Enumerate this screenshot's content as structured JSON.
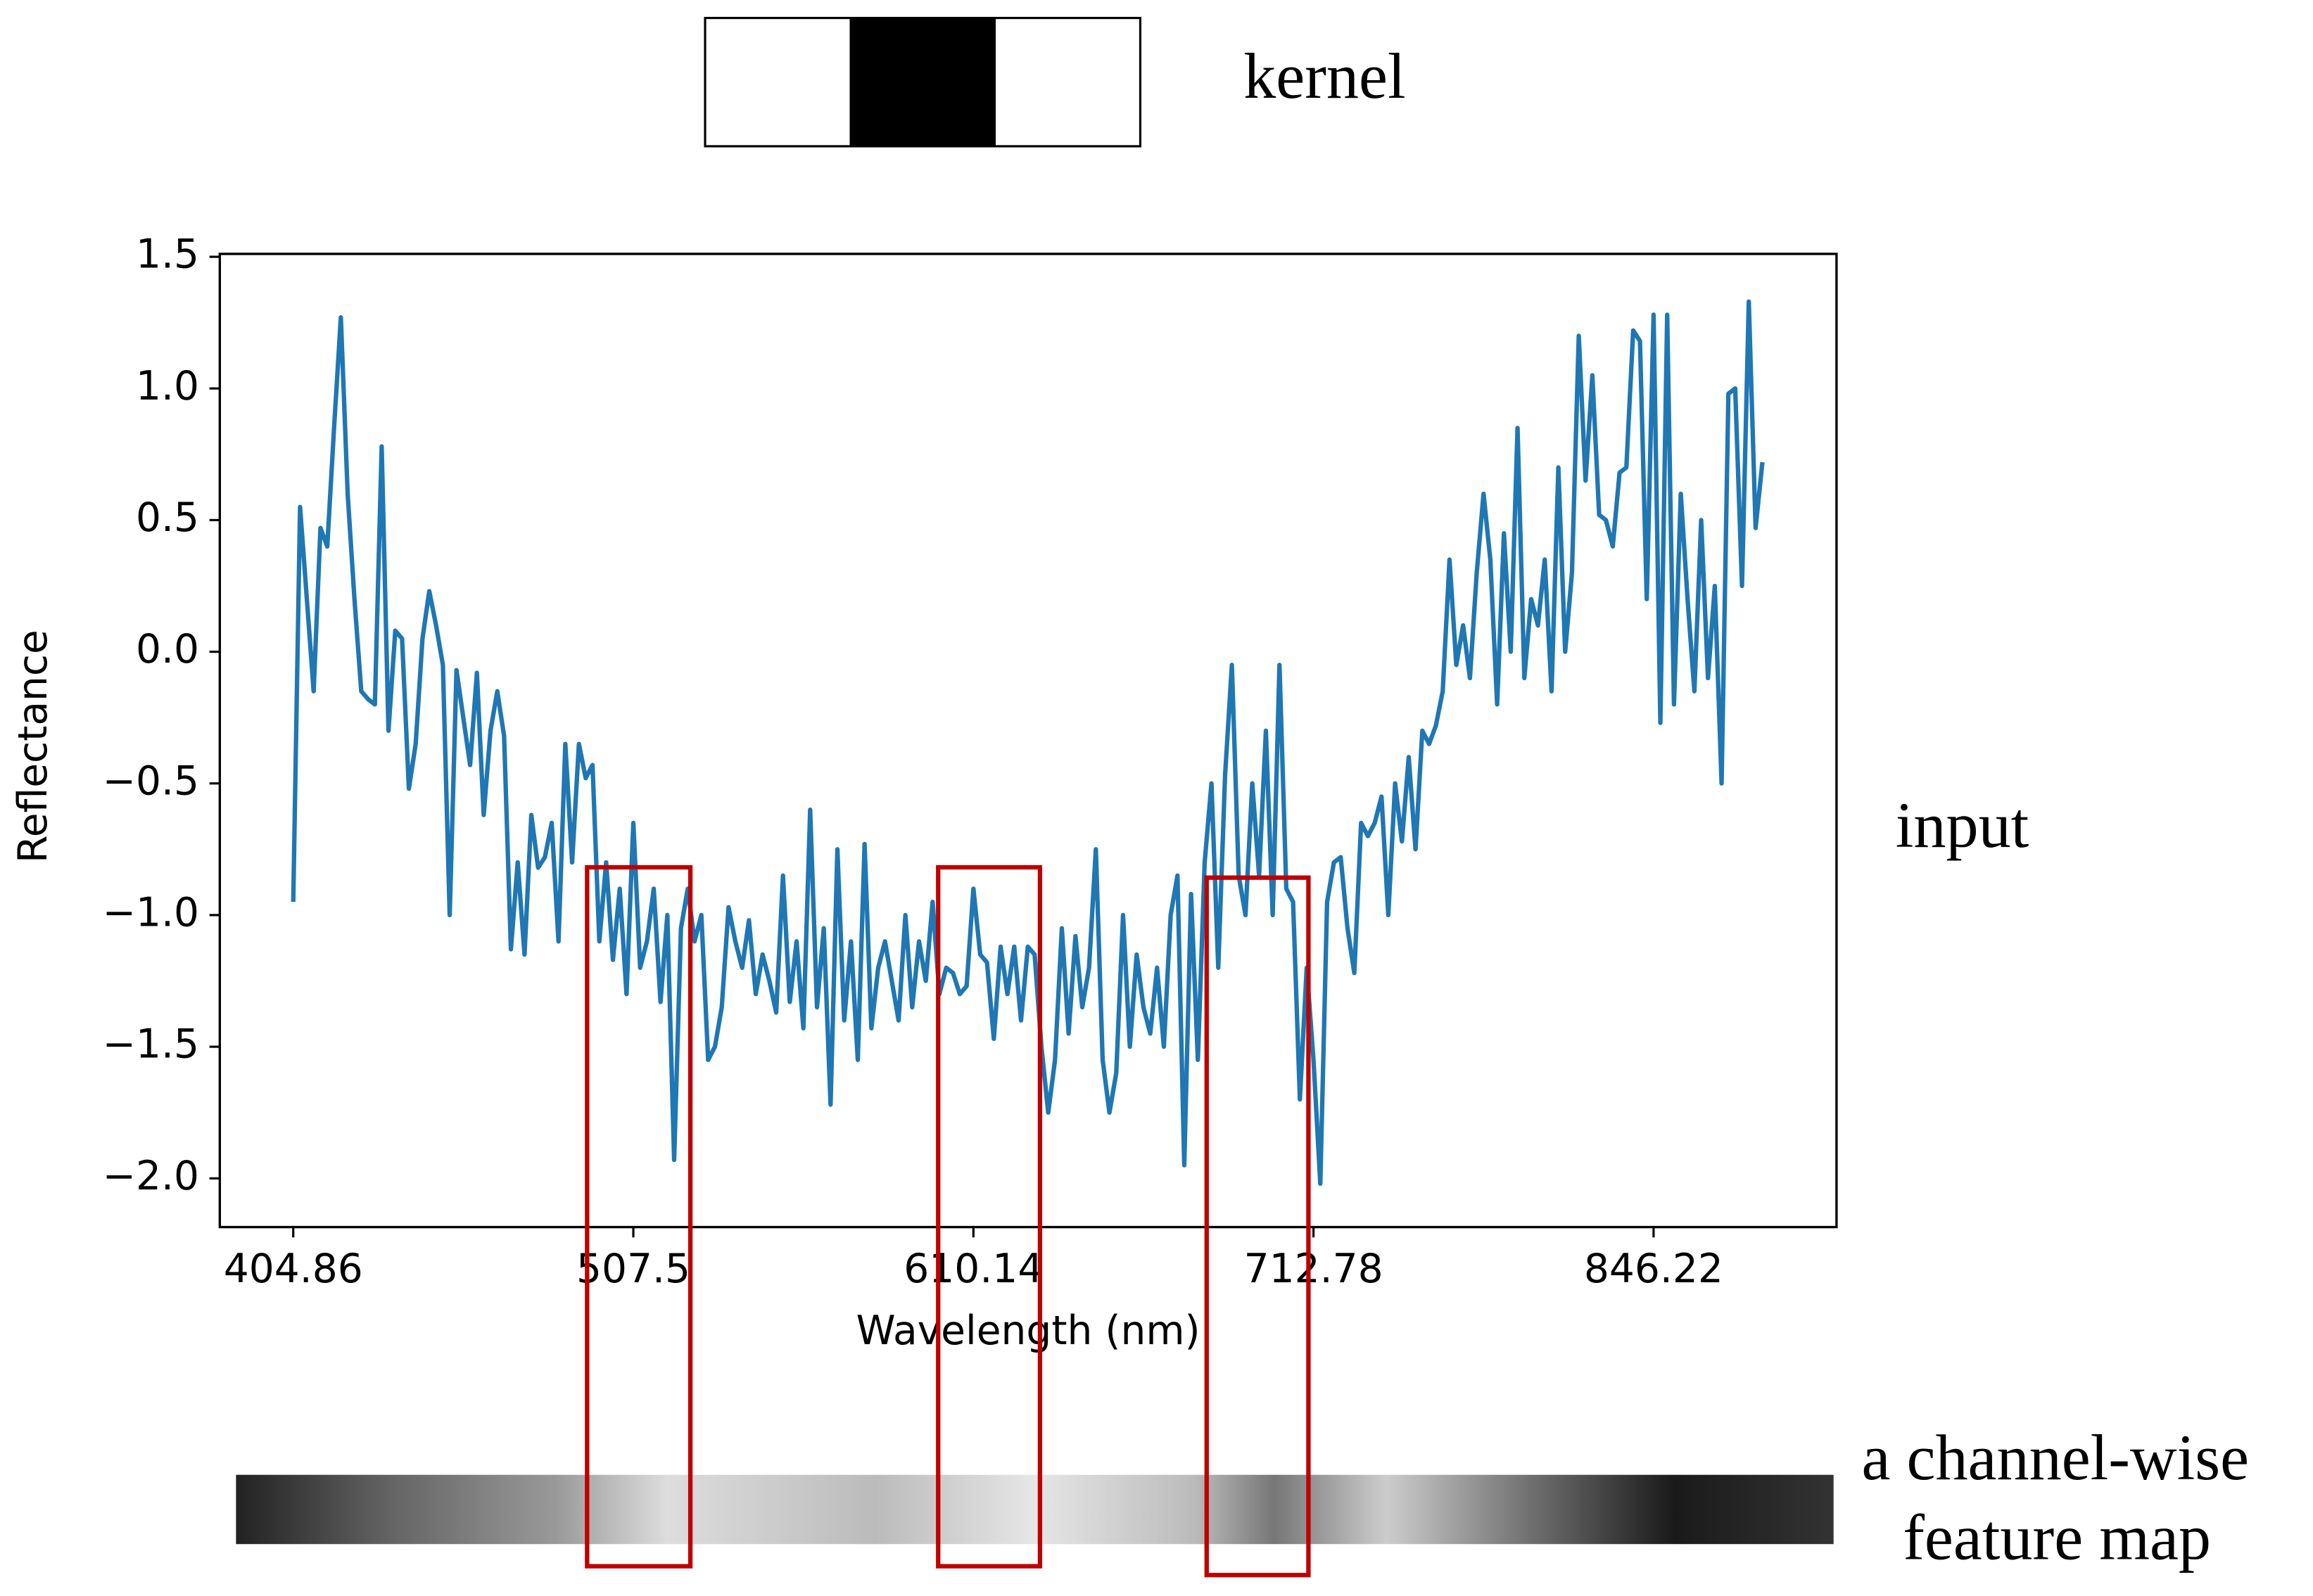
{
  "chart_data": {
    "type": "line",
    "ylabel": "Reflectance",
    "xlabel": "Wavelength (nm)",
    "annotations": [
      "kernel",
      "input",
      "a channel-wise",
      "feature map"
    ],
    "color": "#1f77b4",
    "xlim": [
      -10.8,
      226.9
    ],
    "xticks": [
      {
        "value": 0,
        "label": "404.86"
      },
      {
        "value": 50,
        "label": "507.5"
      },
      {
        "value": 100,
        "label": "610.14"
      },
      {
        "value": 150,
        "label": "712.78"
      },
      {
        "value": 200,
        "label": "846.22"
      }
    ],
    "ylim": [
      -2.185,
      1.511
    ],
    "yticks": [
      1.5,
      {
        "value": 1,
        "label": "1.0"
      },
      0.5,
      {
        "value": 0,
        "label": "0.0"
      },
      {
        "value": -0.5,
        "label": "−0.5"
      },
      {
        "value": -1,
        "label": "−1.0"
      },
      {
        "value": -1.5,
        "label": "−1.5"
      },
      {
        "value": -2,
        "label": "−2.0"
      }
    ],
    "values": [
      -0.95,
      0.55,
      0.2,
      -0.15,
      0.47,
      0.4,
      0.85,
      1.27,
      0.6,
      0.2,
      -0.15,
      -0.18,
      -0.2,
      0.78,
      -0.3,
      0.08,
      0.05,
      -0.52,
      -0.35,
      0.05,
      0.23,
      0.1,
      -0.05,
      -1.0,
      -0.07,
      -0.25,
      -0.43,
      -0.08,
      -0.62,
      -0.3,
      -0.15,
      -0.32,
      -1.13,
      -0.8,
      -1.15,
      -0.62,
      -0.82,
      -0.78,
      -0.65,
      -1.1,
      -0.35,
      -0.8,
      -0.35,
      -0.48,
      -0.43,
      -1.1,
      -0.8,
      -1.17,
      -0.9,
      -1.3,
      -0.65,
      -1.2,
      -1.1,
      -0.9,
      -1.33,
      -1.0,
      -1.93,
      -1.05,
      -0.9,
      -1.1,
      -1.0,
      -1.55,
      -1.5,
      -1.35,
      -0.97,
      -1.1,
      -1.2,
      -1.02,
      -1.3,
      -1.15,
      -1.25,
      -1.37,
      -0.85,
      -1.33,
      -1.1,
      -1.43,
      -0.6,
      -1.35,
      -1.05,
      -1.72,
      -0.75,
      -1.4,
      -1.1,
      -1.55,
      -0.73,
      -1.43,
      -1.2,
      -1.1,
      -1.25,
      -1.4,
      -1.0,
      -1.35,
      -1.1,
      -1.25,
      -0.95,
      -1.3,
      -1.2,
      -1.22,
      -1.3,
      -1.27,
      -0.9,
      -1.15,
      -1.18,
      -1.47,
      -1.12,
      -1.3,
      -1.12,
      -1.4,
      -1.12,
      -1.15,
      -1.5,
      -1.75,
      -1.55,
      -1.05,
      -1.45,
      -1.08,
      -1.35,
      -1.2,
      -0.75,
      -1.55,
      -1.75,
      -1.6,
      -1.0,
      -1.5,
      -1.15,
      -1.35,
      -1.45,
      -1.2,
      -1.5,
      -1.0,
      -0.85,
      -1.95,
      -0.92,
      -1.55,
      -0.8,
      -0.5,
      -1.2,
      -0.47,
      -0.05,
      -0.85,
      -1.0,
      -0.5,
      -0.85,
      -0.3,
      -1.0,
      -0.05,
      -0.9,
      -0.95,
      -1.7,
      -1.2,
      -1.55,
      -2.02,
      -0.95,
      -0.8,
      -0.78,
      -1.05,
      -1.22,
      -0.65,
      -0.7,
      -0.65,
      -0.55,
      -1.0,
      -0.5,
      -0.72,
      -0.4,
      -0.75,
      -0.3,
      -0.35,
      -0.28,
      -0.15,
      0.35,
      -0.05,
      0.1,
      -0.1,
      0.3,
      0.6,
      0.35,
      -0.2,
      0.45,
      0.0,
      0.85,
      -0.1,
      0.2,
      0.1,
      0.35,
      -0.15,
      0.7,
      0.0,
      0.3,
      1.2,
      0.65,
      1.05,
      0.52,
      0.5,
      0.4,
      0.68,
      0.7,
      1.22,
      1.18,
      0.2,
      1.28,
      -0.27,
      1.28,
      -0.2,
      0.6,
      0.2,
      -0.15,
      0.5,
      -0.1,
      0.25,
      -0.5,
      0.98,
      1.0,
      0.25,
      1.33,
      0.47,
      0.72
    ]
  }
}
